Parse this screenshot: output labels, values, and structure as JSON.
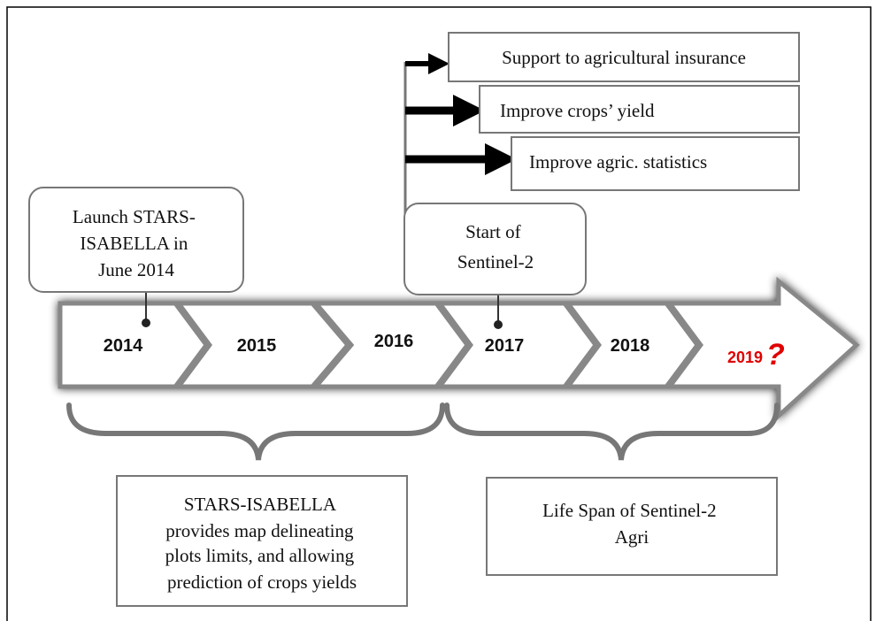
{
  "outcomes": [
    {
      "text": "Support to agricultural insurance"
    },
    {
      "text": "Improve crops’ yield"
    },
    {
      "text": "Improve agric. statistics"
    }
  ],
  "callouts": [
    {
      "lines": [
        "Launch STARS-",
        "ISABELLA in",
        "June 2014"
      ]
    },
    {
      "lines": [
        "Start of",
        "Sentinel-2"
      ]
    }
  ],
  "timeline": {
    "years": [
      "2014",
      "2015",
      "2016",
      "2017",
      "2018",
      "2019"
    ],
    "last_mark": "?"
  },
  "periods": [
    {
      "lines": [
        "STARS-ISABELLA",
        "provides map delineating",
        "plots limits, and allowing",
        "prediction of crops yields"
      ]
    },
    {
      "lines": [
        "Life Span of Sentinel-2",
        "Agri"
      ]
    }
  ]
}
